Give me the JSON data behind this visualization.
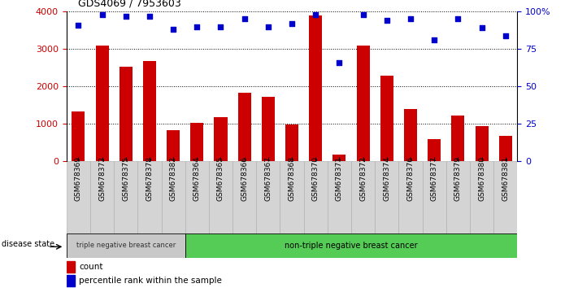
{
  "title": "GDS4069 / 7953603",
  "samples": [
    "GSM678369",
    "GSM678373",
    "GSM678375",
    "GSM678378",
    "GSM678382",
    "GSM678364",
    "GSM678365",
    "GSM678366",
    "GSM678367",
    "GSM678368",
    "GSM678370",
    "GSM678371",
    "GSM678372",
    "GSM678374",
    "GSM678376",
    "GSM678377",
    "GSM678379",
    "GSM678380",
    "GSM678381"
  ],
  "counts": [
    1330,
    3100,
    2530,
    2680,
    840,
    1020,
    1170,
    1820,
    1730,
    980,
    3900,
    175,
    3100,
    2280,
    1390,
    600,
    1230,
    930,
    680
  ],
  "percentiles": [
    91,
    98,
    97,
    97,
    88,
    90,
    90,
    95,
    90,
    92,
    98,
    66,
    98,
    94,
    95,
    81,
    95,
    89,
    84
  ],
  "bar_color": "#cc0000",
  "dot_color": "#0000cc",
  "group1_label": "triple negative breast cancer",
  "group2_label": "non-triple negative breast cancer",
  "group1_count": 5,
  "disease_state_label": "disease state",
  "legend_count": "count",
  "legend_percentile": "percentile rank within the sample",
  "ylim_left": [
    0,
    4000
  ],
  "ylim_right": [
    0,
    100
  ],
  "yticks_left": [
    0,
    1000,
    2000,
    3000,
    4000
  ],
  "ytick_labels_right": [
    "0",
    "25",
    "50",
    "75",
    "100%"
  ],
  "gray_cell_color": "#d4d4d4",
  "green_color": "#55cc55",
  "group1_bg": "#c8c8c8"
}
